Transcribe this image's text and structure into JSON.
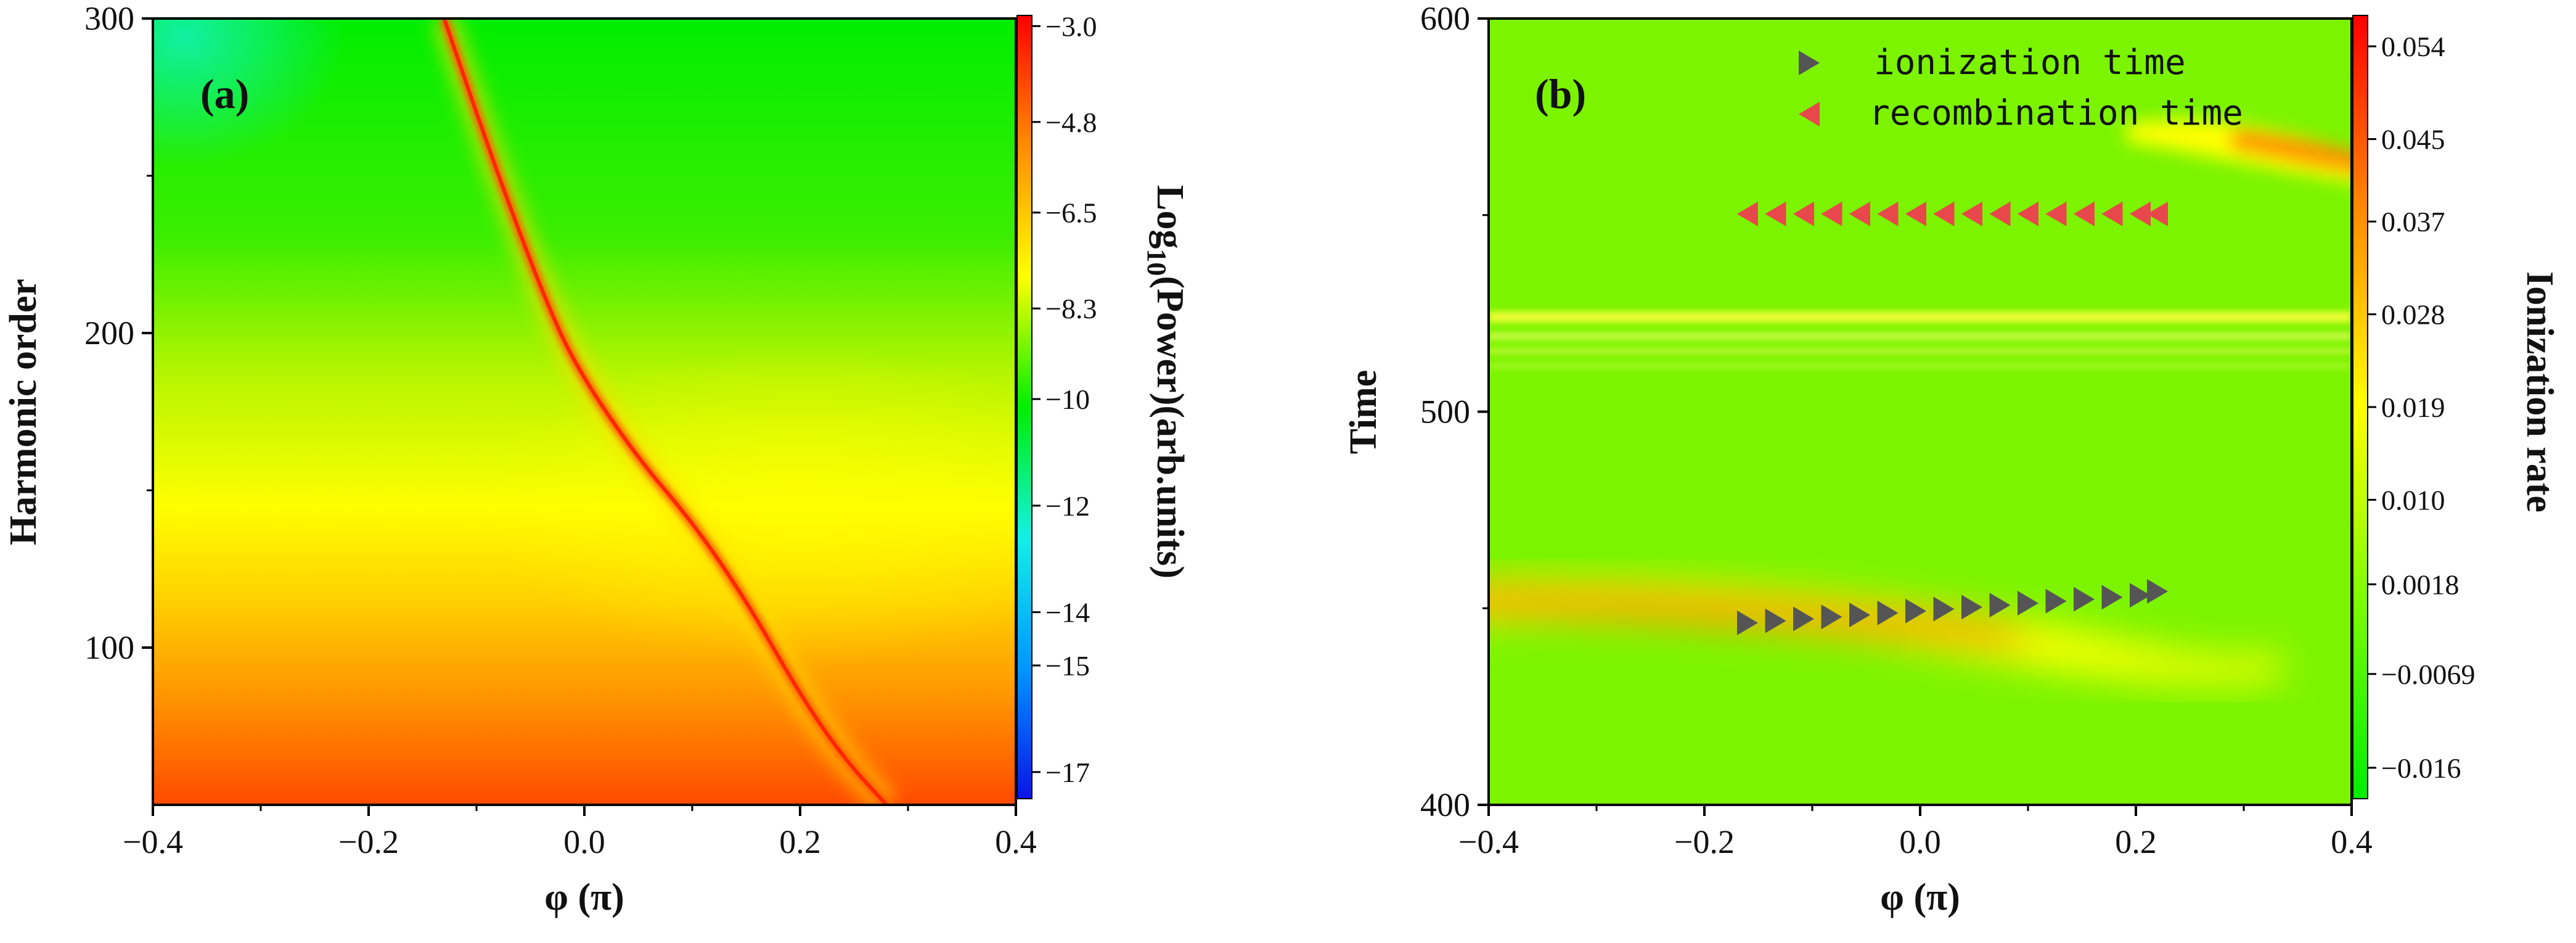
{
  "chart_data": [
    {
      "type": "heatmap",
      "panel_label": "(a)",
      "xlabel": "φ (π)",
      "ylabel": "Harmonic order",
      "xlim": [
        -0.4,
        0.4
      ],
      "ylim": [
        50,
        300
      ],
      "xticks": [
        -0.4,
        -0.2,
        0.0,
        0.2,
        0.4
      ],
      "xtick_labels": [
        "−0.4",
        "−0.2",
        "0.0",
        "0.2",
        "0.4"
      ],
      "yticks": [
        100,
        200,
        300
      ],
      "ytick_labels": [
        "100",
        "200",
        "300"
      ],
      "colorbar": {
        "title": "Log10(Power)(arb.units)",
        "title_main": "Log",
        "title_sub": "10",
        "title_rest": "(Power)(arb.units)",
        "range": [
          -17.5,
          -2.8
        ],
        "ticks": [
          -3.0,
          -4.8,
          -6.5,
          -8.3,
          -10,
          -12,
          -14,
          -15,
          -17
        ],
        "tick_labels": [
          "−3.0",
          "−4.8",
          "−6.5",
          "−8.3",
          "−10",
          "−12",
          "−14",
          "−15",
          "−17"
        ],
        "colors": [
          "#0a14e6",
          "#0096ff",
          "#14f0e6",
          "#00ee00",
          "#ffff00",
          "#ff8c00",
          "#ff0000"
        ]
      },
      "ridge": {
        "phi": [
          -0.13,
          -0.08,
          -0.03,
          0.0,
          0.05,
          0.1,
          0.15,
          0.2,
          0.24,
          0.28
        ],
        "harmonic": [
          300,
          250,
          205,
          185,
          160,
          140,
          115,
          85,
          65,
          50
        ]
      }
    },
    {
      "type": "heatmap",
      "panel_label": "(b)",
      "xlabel": "φ (π)",
      "ylabel": "Time",
      "xlim": [
        -0.4,
        0.4
      ],
      "ylim": [
        400,
        600
      ],
      "xticks": [
        -0.4,
        -0.2,
        0.0,
        0.2,
        0.4
      ],
      "xtick_labels": [
        "−0.4",
        "−0.2",
        "0.0",
        "0.2",
        "0.4"
      ],
      "yticks": [
        400,
        500,
        600
      ],
      "ytick_labels": [
        "400",
        "500",
        "600"
      ],
      "colorbar": {
        "title": "Ionization rate",
        "range": [
          -0.019,
          0.057
        ],
        "ticks": [
          0.054,
          0.045,
          0.037,
          0.028,
          0.019,
          0.01,
          0.0018,
          -0.0069,
          -0.016
        ],
        "tick_labels": [
          "0.054",
          "0.045",
          "0.037",
          "0.028",
          "0.019",
          "0.010",
          "0.0018",
          "−0.0069",
          "−0.016"
        ],
        "colors": [
          "#00ee00",
          "#7cfc00",
          "#ffff00",
          "#ff8c00",
          "#ff0000"
        ]
      },
      "legend": [
        {
          "label": "ionization time",
          "marker": "triangle-right",
          "color": "#555555"
        },
        {
          "label": "recombination time",
          "marker": "triangle-left",
          "color": "#e8474c"
        }
      ],
      "series": [
        {
          "name": "ionization time",
          "phi": [
            -0.16,
            -0.134,
            -0.108,
            -0.082,
            -0.056,
            -0.03,
            -0.004,
            0.022,
            0.048,
            0.074,
            0.1,
            0.126,
            0.152,
            0.178,
            0.204,
            0.22
          ],
          "time": [
            446.3,
            446.8,
            447.3,
            447.8,
            448.3,
            448.8,
            449.3,
            449.8,
            450.3,
            450.8,
            451.3,
            451.8,
            452.3,
            452.8,
            453.3,
            454.3
          ]
        },
        {
          "name": "recombination time",
          "phi": [
            -0.16,
            -0.134,
            -0.108,
            -0.082,
            -0.056,
            -0.03,
            -0.004,
            0.022,
            0.048,
            0.074,
            0.1,
            0.126,
            0.152,
            0.178,
            0.204,
            0.22
          ],
          "time": [
            550.3,
            550.3,
            550.3,
            550.3,
            550.3,
            550.3,
            550.3,
            550.3,
            550.3,
            550.3,
            550.3,
            550.3,
            550.3,
            550.3,
            550.3,
            550.3
          ]
        }
      ]
    }
  ]
}
